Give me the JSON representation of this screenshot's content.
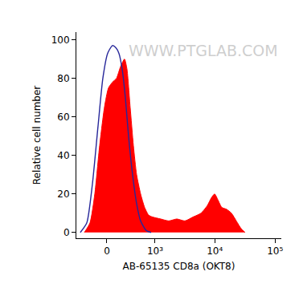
{
  "chart_data": {
    "type": "area",
    "x_label": "AB-65135 CD8a (OKT8)",
    "y_label": "Relative cell number",
    "annotations": [
      {
        "text": "WWW.PTGLAB.COM"
      }
    ],
    "xlim": [
      -470,
      127000
    ],
    "xticks": [
      0,
      {
        "value": 1000,
        "label": "10³"
      },
      {
        "value": 10000,
        "label": "10⁴"
      },
      {
        "value": 100000,
        "label": "10⁵"
      }
    ],
    "ylim": [
      -3,
      104
    ],
    "yticks": [
      0,
      20,
      40,
      60,
      80,
      100
    ],
    "grid": false,
    "series": [
      {
        "type": "area",
        "color": "#ff0000",
        "x": [
          -315,
          -224,
          -155,
          -91,
          -30,
          20,
          70,
          122,
          177,
          236,
          274,
          329,
          389,
          454,
          545,
          649,
          769,
          907,
          1250,
          1710,
          2340,
          3190,
          4340,
          5900,
          7540,
          8790,
          9950,
          11250,
          13100,
          15760,
          18950,
          22780,
          27400,
          31950
        ],
        "values": [
          0,
          5,
          20,
          45,
          65,
          75,
          78,
          80,
          86,
          90,
          85,
          65,
          45,
          30,
          20,
          13,
          9,
          8,
          7,
          6,
          7,
          6,
          8,
          10,
          14,
          18,
          20,
          17,
          13,
          12,
          10,
          6,
          2,
          0
        ]
      },
      {
        "type": "line",
        "color": "#27279a",
        "x": [
          -389,
          -274,
          -189,
          -112,
          -50,
          10,
          70,
          112,
          155,
          200,
          249,
          301,
          373,
          454,
          545,
          695,
          850
        ],
        "values": [
          0,
          5,
          25,
          55,
          80,
          93,
          97,
          96,
          93,
          85,
          70,
          50,
          30,
          15,
          6,
          1,
          0
        ]
      }
    ]
  }
}
